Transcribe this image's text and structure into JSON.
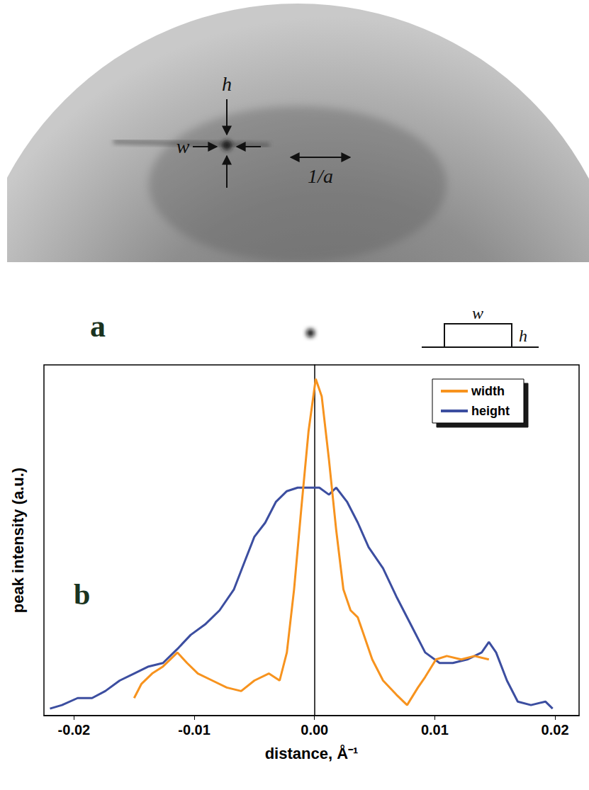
{
  "panel_a": {
    "letter": "a",
    "marks": {
      "h": "h",
      "w": "w",
      "period": "1/a"
    },
    "inset": {
      "top": "w",
      "side": "h"
    }
  },
  "chart_data": {
    "type": "line",
    "x_label": "distance, Å⁻¹",
    "y_label": "peak intensity (a.u.)",
    "annotations": [
      "b"
    ],
    "xlim": [
      -0.0225,
      0.022
    ],
    "xticks": [
      -0.02,
      -0.01,
      {
        "value": 0,
        "label": "0.00"
      },
      0.01,
      0.02
    ],
    "ylim": [
      0,
      1
    ],
    "tick_labels": "x",
    "grid": false,
    "legend": "upper right",
    "marker": "none",
    "series": [
      {
        "name": "width",
        "color": "#f7931e",
        "x": [
          -0.015,
          -0.0144,
          -0.0135,
          -0.0126,
          -0.0114,
          -0.0106,
          -0.0097,
          -0.0085,
          -0.0073,
          -0.0061,
          -0.005,
          -0.0038,
          -0.0029,
          -0.0023,
          -0.0017,
          -0.0011,
          -0.0005,
          0.0001,
          0.0006,
          0.0012,
          0.0018,
          0.0024,
          0.003,
          0.0036,
          0.0042,
          0.0048,
          0.0057,
          0.0068,
          0.0077,
          0.0086,
          0.0092,
          0.0101,
          0.011,
          0.0122,
          0.0133,
          0.0145
        ],
        "values": [
          0.05,
          0.09,
          0.12,
          0.14,
          0.18,
          0.15,
          0.12,
          0.1,
          0.08,
          0.07,
          0.1,
          0.12,
          0.1,
          0.18,
          0.36,
          0.59,
          0.81,
          0.96,
          0.91,
          0.73,
          0.53,
          0.36,
          0.3,
          0.28,
          0.22,
          0.16,
          0.1,
          0.06,
          0.03,
          0.08,
          0.11,
          0.16,
          0.17,
          0.16,
          0.17,
          0.16
        ]
      },
      {
        "name": "height",
        "color": "#3c4ea0",
        "x": [
          -0.022,
          -0.021,
          -0.0197,
          -0.0185,
          -0.0174,
          -0.0162,
          -0.015,
          -0.0138,
          -0.0126,
          -0.0114,
          -0.0103,
          -0.0091,
          -0.0079,
          -0.0067,
          -0.0058,
          -0.005,
          -0.0041,
          -0.0032,
          -0.0023,
          -0.0014,
          -0.0005,
          0.0004,
          0.0012,
          0.0018,
          0.0027,
          0.0036,
          0.0045,
          0.0057,
          0.0068,
          0.008,
          0.0092,
          0.0104,
          0.0115,
          0.0127,
          0.0139,
          0.0145,
          0.0151,
          0.016,
          0.0169,
          0.018,
          0.0192,
          0.0198
        ],
        "values": [
          0.02,
          0.03,
          0.05,
          0.05,
          0.07,
          0.1,
          0.12,
          0.14,
          0.15,
          0.19,
          0.23,
          0.26,
          0.3,
          0.36,
          0.44,
          0.51,
          0.55,
          0.61,
          0.64,
          0.65,
          0.65,
          0.65,
          0.63,
          0.65,
          0.61,
          0.55,
          0.48,
          0.42,
          0.34,
          0.26,
          0.18,
          0.15,
          0.15,
          0.16,
          0.18,
          0.21,
          0.18,
          0.1,
          0.04,
          0.03,
          0.04,
          0.02
        ]
      }
    ]
  }
}
